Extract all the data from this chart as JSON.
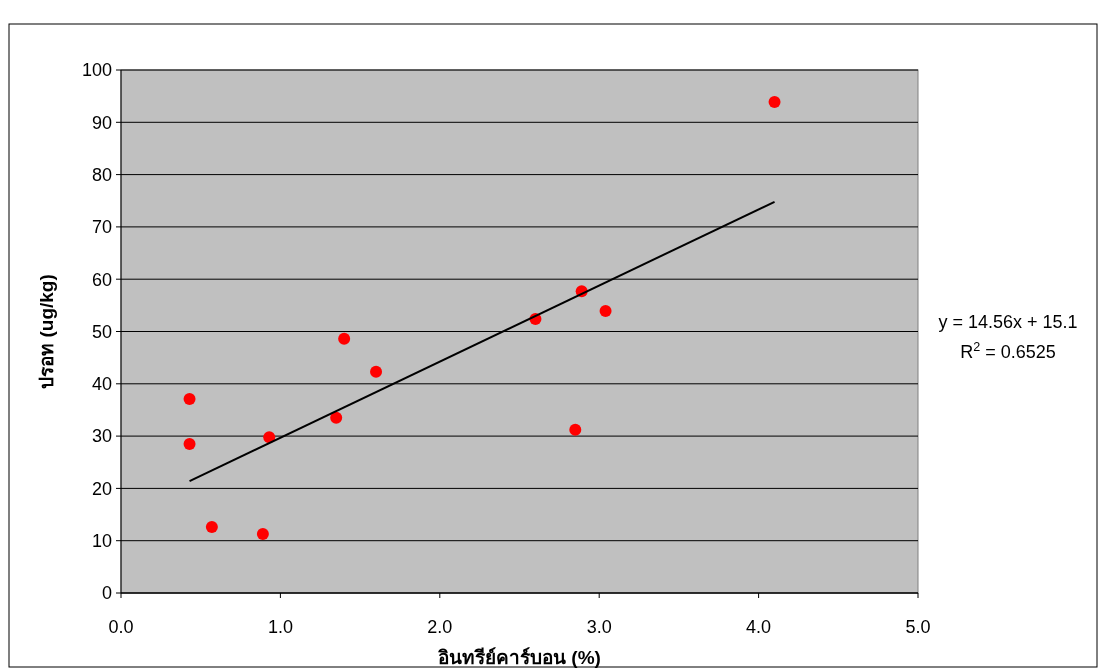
{
  "chart_data": {
    "type": "scatter",
    "xlabel": "อินทรีย์คาร์บอน (%)",
    "ylabel": "ปรอท (ug/kg)",
    "xlim": [
      0,
      5
    ],
    "xticks": [
      {
        "value": 0,
        "label": "0.0"
      },
      {
        "value": 1,
        "label": "1.0"
      },
      {
        "value": 2,
        "label": "2.0"
      },
      {
        "value": 3,
        "label": "3.0"
      },
      {
        "value": 4,
        "label": "4.0"
      },
      {
        "value": 5,
        "label": "5.0"
      }
    ],
    "ylim": [
      0,
      100
    ],
    "yticks": [
      0,
      10,
      20,
      30,
      40,
      50,
      60,
      70,
      80,
      90,
      100
    ],
    "grid": "y",
    "series": [
      {
        "marker": "circle",
        "color": "#ff0000",
        "x": [
          0.43,
          0.43,
          0.57,
          0.89,
          0.93,
          1.35,
          1.4,
          1.6,
          2.6,
          2.85,
          2.89,
          3.04,
          4.1
        ],
        "values": [
          37.1,
          28.5,
          12.6,
          11.3,
          29.8,
          33.5,
          48.6,
          42.3,
          52.4,
          31.2,
          57.7,
          53.9,
          93.9
        ]
      },
      {
        "type": "line",
        "color": "#000000",
        "x": [
          0.43,
          4.1
        ],
        "values": [
          21.4,
          74.8
        ]
      }
    ],
    "annotations": [
      "y = 14.56x + 15.1",
      "R$^{2}$ = 0.6525"
    ]
  }
}
